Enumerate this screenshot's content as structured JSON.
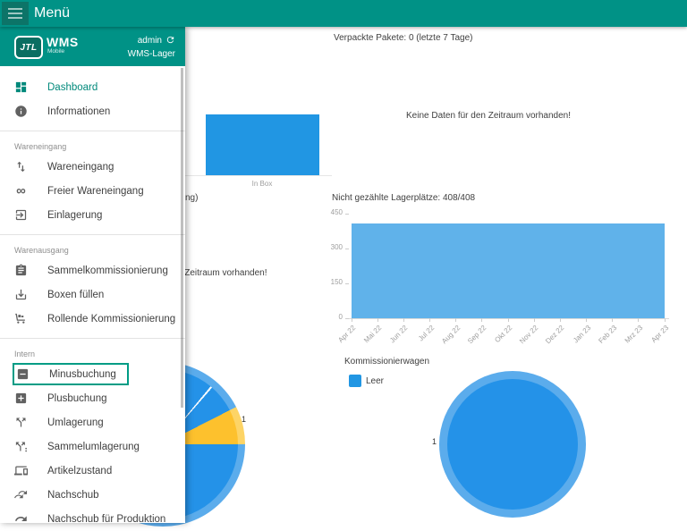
{
  "colors": {
    "appbar_teal": "#009286",
    "burger_square": "#0c7468",
    "accent_teal": "#00897b",
    "outline_teal": "#009c85",
    "bar_blue": "#2196e3",
    "area_blue": "#60b2ea",
    "pie_blue": "#2492e8",
    "pie_blue_ring": "#5bacec",
    "pie_yellow": "#fdc12d",
    "pie_yellow_ring": "#fdd466"
  },
  "appbar": {
    "title": "Menü"
  },
  "drawer": {
    "logo_text": "JTL",
    "product": "WMS",
    "product_sub": "Mobile",
    "user": "admin",
    "warehouse": "WMS-Lager",
    "sections": [
      {
        "label": "",
        "items": [
          {
            "icon": "dashboard-icon",
            "label": "Dashboard",
            "active": true
          },
          {
            "icon": "info-icon",
            "label": "Informationen"
          }
        ]
      },
      {
        "label": "Wareneingang",
        "items": [
          {
            "icon": "swap-vert-icon",
            "label": "Wareneingang"
          },
          {
            "icon": "infinity-icon",
            "label": "Freier Wareneingang"
          },
          {
            "icon": "exit-to-app-icon",
            "label": "Einlagerung"
          }
        ]
      },
      {
        "label": "Warenausgang",
        "items": [
          {
            "icon": "clipboard-icon",
            "label": "Sammelkommissionierung"
          },
          {
            "icon": "tray-download-icon",
            "label": "Boxen füllen"
          },
          {
            "icon": "trolley-icon",
            "label": "Rollende Kommissionierung"
          }
        ]
      },
      {
        "label": "Intern",
        "items": [
          {
            "icon": "minus-box-icon",
            "label": "Minusbuchung",
            "outlined": true
          },
          {
            "icon": "plus-box-icon",
            "label": "Plusbuchung"
          },
          {
            "icon": "call-split-icon",
            "label": "Umlagerung"
          },
          {
            "icon": "call-split-multi-icon",
            "label": "Sammelumlagerung"
          },
          {
            "icon": "devices-icon",
            "label": "Artikelzustand"
          },
          {
            "icon": "double-forward-icon",
            "label": "Nachschub"
          },
          {
            "icon": "forward-icon",
            "label": "Nachschub für Produktion"
          }
        ]
      }
    ]
  },
  "dashboard": {
    "empty_message": "Keine Daten für den Zeitraum vorhanden!",
    "packed_parcels": {
      "title": "Verpackte Pakete: 0 (letzte 7 Tage)"
    },
    "in_box_chart": {
      "category": "In Box"
    },
    "occluded_title_fragment": "ng)",
    "uncounted_bins": {
      "title": "Nicht gezählte Lagerplätze: 408/408",
      "value": 408,
      "y_ticks": [
        "450",
        "300",
        "150",
        "0"
      ],
      "x_ticks": [
        "Apr 22",
        "Mai 22",
        "Jun 22",
        "Jul 22",
        "Aug 22",
        "Sep 22",
        "Okt 22",
        "Nov 22",
        "Dez 22",
        "Jan 23",
        "Feb 23",
        "Mrz 23",
        "Apr 23"
      ]
    },
    "left_pie": {
      "label": "1"
    },
    "picking_carts": {
      "title": "Kommissionierwagen",
      "legend": [
        {
          "label": "Leer",
          "color": "#2196e3"
        }
      ],
      "label": "1"
    }
  },
  "chart_data": [
    {
      "type": "bar",
      "title": "",
      "categories": [
        "In Box"
      ],
      "values": [
        null
      ],
      "note": "y-axis hidden behind menu drawer"
    },
    {
      "type": "area",
      "title": "Nicht gezählte Lagerplätze: 408/408",
      "x": [
        "Apr 22",
        "Mai 22",
        "Jun 22",
        "Jul 22",
        "Aug 22",
        "Sep 22",
        "Okt 22",
        "Nov 22",
        "Dez 22",
        "Jan 23",
        "Feb 23",
        "Mrz 23",
        "Apr 23"
      ],
      "values": [
        408,
        408,
        408,
        408,
        408,
        408,
        408,
        408,
        408,
        408,
        408,
        408,
        408
      ],
      "ylim": [
        0,
        450
      ],
      "y_ticks": [
        0,
        150,
        300,
        450
      ],
      "grid": false,
      "fill_color": "#60b2ea"
    },
    {
      "type": "pie",
      "title": "",
      "labels": [
        "1"
      ],
      "slice_colors": [
        "#fdc12d",
        "#2492e8"
      ],
      "note": "partially hidden behind menu drawer"
    },
    {
      "type": "pie",
      "title": "Kommissionierwagen",
      "labels": [
        "Leer"
      ],
      "values": [
        1
      ],
      "slice_colors": [
        "#2492e8"
      ],
      "legend_position": "top-left"
    }
  ]
}
